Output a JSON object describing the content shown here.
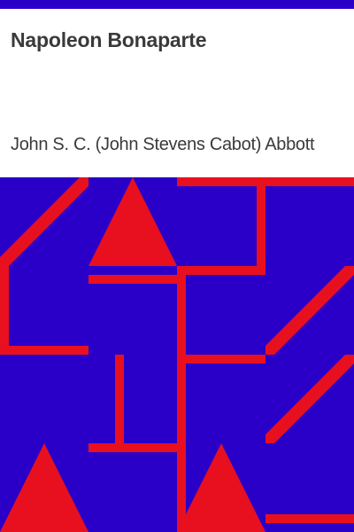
{
  "cover": {
    "title": "Napoleon Bonaparte",
    "author": "John S. C. (John Stevens Cabot) Abbott"
  },
  "colors": {
    "background": "#2a00c8",
    "accent": "#e8101e",
    "text": "#3a3a3a",
    "panel": "#ffffff"
  }
}
